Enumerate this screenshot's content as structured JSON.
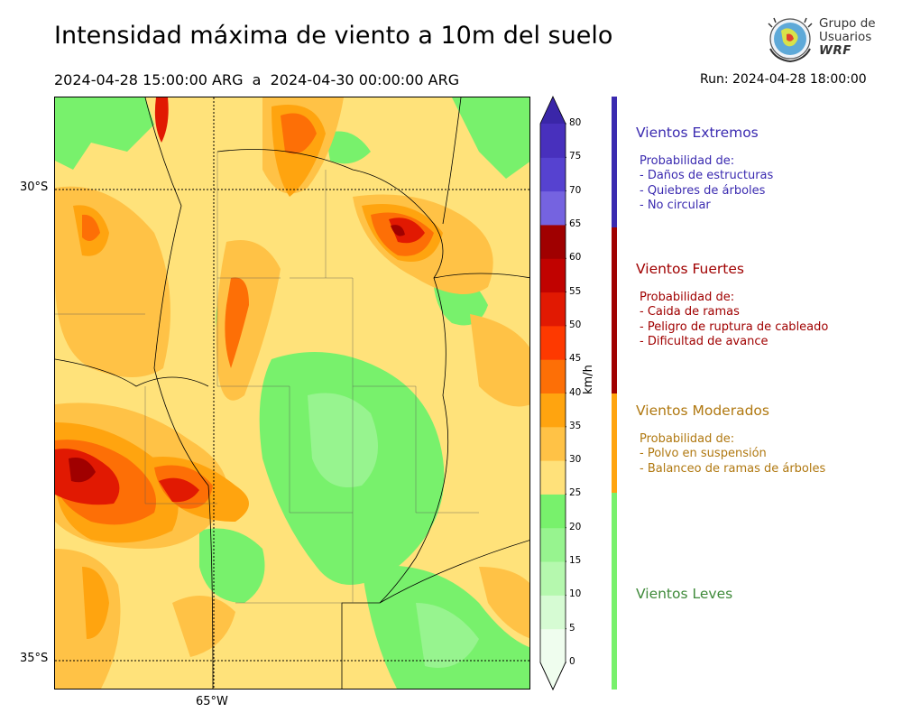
{
  "header": {
    "title": "Intensidad máxima de viento a 10m del suelo",
    "period": "2024-04-28 15:00:00 ARG  a  2024-04-30 00:00:00 ARG",
    "run": "Run: 2024-04-28 18:00:00"
  },
  "logo": {
    "line1": "Grupo de",
    "line2": "Usuarios",
    "line3": "WRF"
  },
  "map": {
    "lat_labels": [
      "30°S",
      "35°S"
    ],
    "lon_labels": [
      "65°W"
    ],
    "base_fill": "#ffe27a"
  },
  "colorbar": {
    "unit": "km/h",
    "ticks": [
      "0",
      "5",
      "10",
      "15",
      "20",
      "25",
      "30",
      "35",
      "40",
      "45",
      "50",
      "55",
      "60",
      "65",
      "70",
      "75",
      "80"
    ],
    "colors": [
      "#effdee",
      "#d6fbd3",
      "#b5f8ae",
      "#97f48f",
      "#78f16c",
      "#ffe17a",
      "#ffc246",
      "#ffa40f",
      "#fd6f06",
      "#fe3900",
      "#e11902",
      "#c10200",
      "#a00000",
      "#7563e0",
      "#5642d0",
      "#4830bd",
      "#3a26a8"
    ]
  },
  "categories": [
    {
      "title": "Vientos Extremos",
      "color": "#3a2ab0",
      "lines": [
        "Probabilidad de:",
        "- Daños de estructuras",
        "- Quiebres de árboles",
        "- No circular"
      ]
    },
    {
      "title": "Vientos Fuertes",
      "color": "#a00000",
      "lines": [
        "Probabilidad de:",
        "- Caida de ramas",
        "- Peligro de ruptura de cableado",
        "- Dificultad de avance"
      ]
    },
    {
      "title": "Vientos Moderados",
      "color": "#b07810",
      "lines": [
        "Probabilidad de:",
        "- Polvo en suspensión",
        "- Balanceo de ramas de árboles"
      ]
    },
    {
      "title": "Vientos Leves",
      "color": "#3f8a3a",
      "lines": []
    }
  ],
  "category_bar_colors": [
    "#3a2ab0",
    "#a00000",
    "#ffa40f",
    "#78f16c"
  ]
}
